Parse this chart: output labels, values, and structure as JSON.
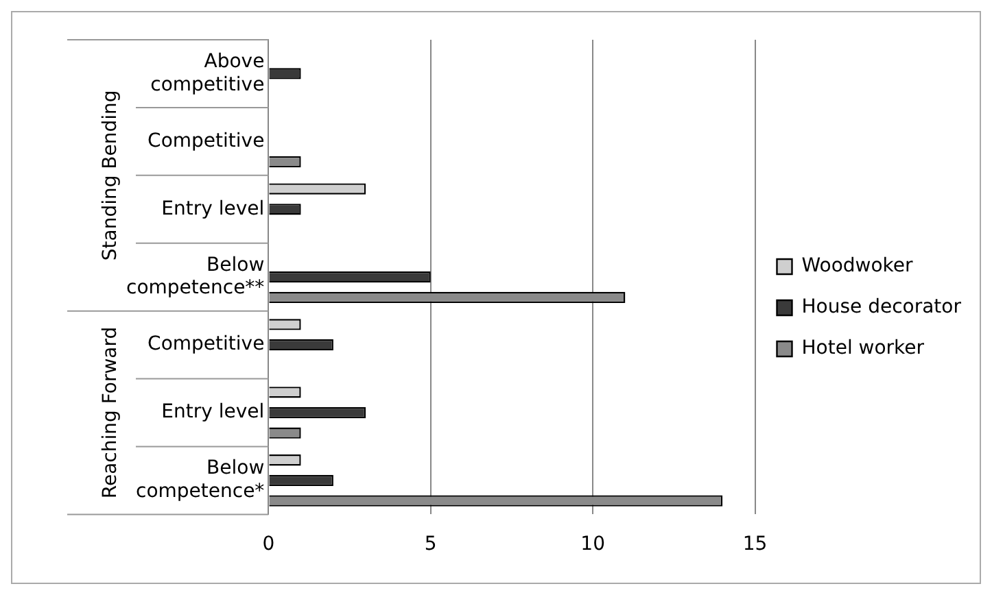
{
  "chart_data": {
    "type": "bar",
    "orientation": "horizontal",
    "categories": [
      "Above competitive",
      "Competitive",
      "Entry level",
      "Below competence**",
      "Competitive",
      "Entry level",
      "Below competence*"
    ],
    "series": [
      {
        "name": "Woodwoker",
        "color": "#cfcfcf",
        "values": [
          0,
          0,
          3,
          0,
          1,
          1,
          1
        ]
      },
      {
        "name": "House decorator",
        "color": "#3a3a3a",
        "values": [
          1,
          0,
          1,
          5,
          2,
          3,
          2
        ]
      },
      {
        "name": "Hotel worker",
        "color": "#8a8a8a",
        "values": [
          0,
          1,
          0,
          11,
          0,
          1,
          14
        ]
      }
    ],
    "xlim": [
      0,
      15
    ],
    "xticks": [
      0,
      5,
      10,
      15
    ],
    "grid": "x",
    "legend": "right",
    "annotations": [
      "Standing Bending",
      "Reaching Forward"
    ]
  }
}
